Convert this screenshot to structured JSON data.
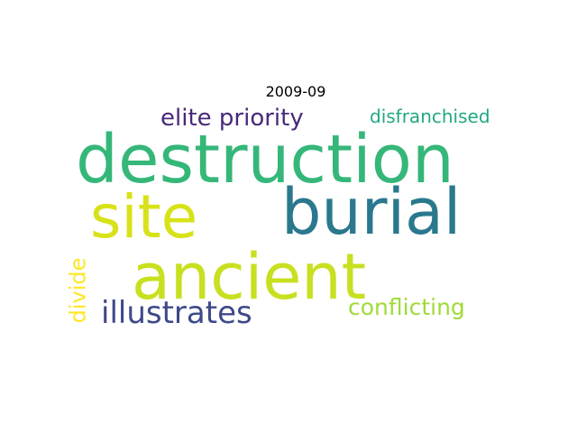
{
  "title": "2009-09",
  "words": [
    {
      "id": "destruction",
      "text": "destruction",
      "color": "#35b779"
    },
    {
      "id": "burial",
      "text": "burial",
      "color": "#2a788e"
    },
    {
      "id": "site",
      "text": "site",
      "color": "#d8e219"
    },
    {
      "id": "ancient",
      "text": "ancient",
      "color": "#c8e020"
    },
    {
      "id": "illustrates",
      "text": "illustrates",
      "color": "#3e4989"
    },
    {
      "id": "elite_priority",
      "text": "elite priority",
      "color": "#482979"
    },
    {
      "id": "disfranchised",
      "text": "disfranchised",
      "color": "#22a884"
    },
    {
      "id": "conflicting",
      "text": "conflicting",
      "color": "#a0da39"
    },
    {
      "id": "divide",
      "text": "divide",
      "color": "#fde725"
    }
  ]
}
